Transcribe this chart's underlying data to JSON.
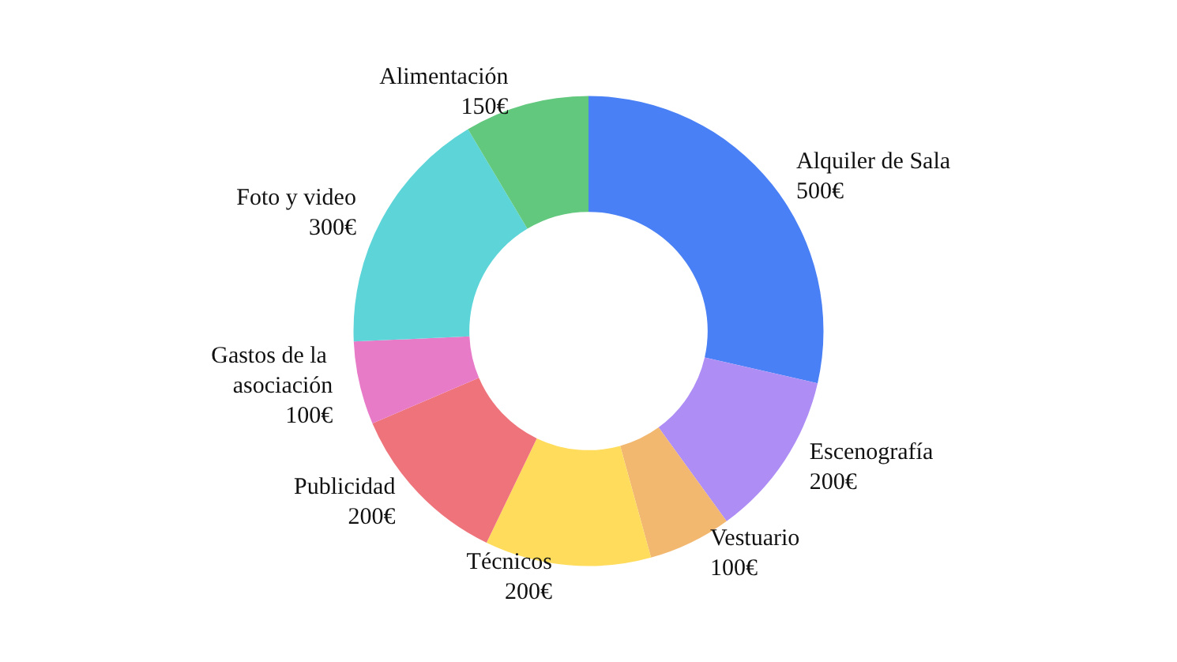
{
  "chart_data": {
    "type": "donut",
    "categories": [
      "Alquiler de Sala",
      "Escenografía",
      "Vestuario",
      "Técnicos",
      "Publicidad",
      "Gastos de la asociación",
      "Foto y video",
      "Alimentación"
    ],
    "values": [
      500,
      200,
      100,
      200,
      200,
      100,
      300,
      150
    ],
    "value_labels": [
      "500€",
      "200€",
      "100€",
      "200€",
      "200€",
      "100€",
      "300€",
      "150€"
    ],
    "colors": [
      "#4a80f5",
      "#ae8ef5",
      "#f2b870",
      "#ffdc5c",
      "#ef737b",
      "#e87bc8",
      "#5dd5d8",
      "#62c87e"
    ],
    "legend": false
  }
}
